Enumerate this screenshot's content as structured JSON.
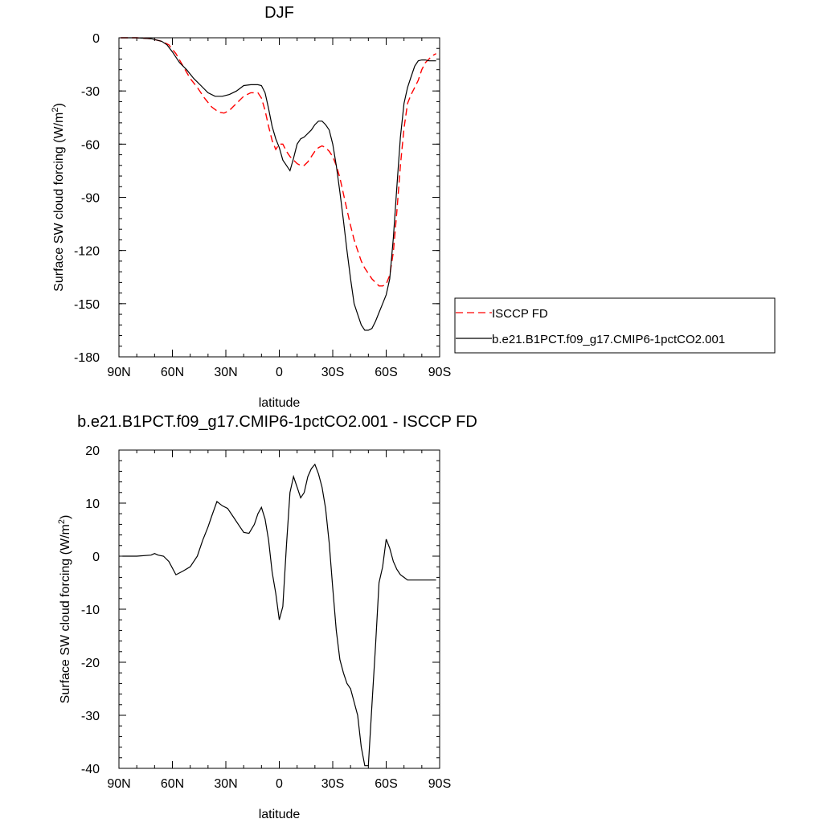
{
  "chart_data": [
    {
      "type": "line",
      "title": "DJF",
      "xlabel": "latitude",
      "ylabel": "Surface SW cloud forcing (W/m²)",
      "ylim": [
        -180,
        0
      ],
      "xlim": [
        -90,
        90
      ],
      "x_ticks": [
        -90,
        -60,
        -30,
        0,
        30,
        60,
        90
      ],
      "x_tick_labels": [
        "90N",
        "60N",
        "30N",
        "0",
        "30S",
        "60S",
        "90S"
      ],
      "y_ticks": [
        0,
        -30,
        -60,
        -90,
        -120,
        -150,
        -180
      ],
      "y_tick_labels": [
        "0",
        "-30",
        "-60",
        "-90",
        "-120",
        "-150",
        "-180"
      ],
      "legend_position": "right",
      "series": [
        {
          "name": "ISCCP FD",
          "color": "#ff0000",
          "dash": "dashed",
          "x": [
            -89,
            -80,
            -72,
            -66,
            -62,
            -58,
            -54,
            -50,
            -46,
            -42,
            -38,
            -34,
            -31,
            -28,
            -24,
            -20,
            -16,
            -12,
            -10,
            -8,
            -6,
            -4,
            -2,
            0,
            2,
            4,
            6,
            8,
            10,
            12,
            14,
            16,
            18,
            20,
            22,
            24,
            26,
            28,
            30,
            32,
            34,
            36,
            38,
            40,
            42,
            44,
            46,
            48,
            50,
            52,
            54,
            56,
            58,
            60,
            62,
            64,
            66,
            68,
            70,
            72,
            74,
            76,
            78,
            80,
            82,
            84,
            86,
            88
          ],
          "y": [
            0,
            0,
            -0.5,
            -2,
            -4,
            -9,
            -16,
            -23,
            -28,
            -34,
            -39,
            -42,
            -42.5,
            -41,
            -37,
            -33,
            -31,
            -31,
            -34,
            -41,
            -50,
            -58,
            -63,
            -60,
            -60,
            -64,
            -67,
            -69,
            -71,
            -72,
            -72,
            -70,
            -67,
            -64,
            -62,
            -61,
            -62,
            -64,
            -67,
            -72,
            -79,
            -88,
            -97,
            -106,
            -114,
            -120,
            -126,
            -130,
            -133,
            -136,
            -138,
            -140,
            -140,
            -139,
            -134,
            -121,
            -98,
            -72,
            -51,
            -37,
            -32,
            -28,
            -24,
            -18,
            -14,
            -12,
            -10,
            -9
          ]
        },
        {
          "name": "b.e21.B1PCT.f09_g17.CMIP6-1pctCO2.001",
          "color": "#000000",
          "dash": "solid",
          "x": [
            -89,
            -80,
            -72,
            -66,
            -63,
            -60,
            -56,
            -52,
            -48,
            -44,
            -40,
            -36,
            -32,
            -28,
            -24,
            -20,
            -16,
            -12,
            -10,
            -8,
            -6,
            -4,
            -2,
            0,
            2,
            4,
            6,
            8,
            10,
            12,
            14,
            16,
            18,
            20,
            22,
            24,
            26,
            28,
            30,
            32,
            34,
            36,
            38,
            40,
            42,
            44,
            46,
            48,
            50,
            52,
            54,
            56,
            58,
            60,
            62,
            64,
            66,
            68,
            70,
            72,
            74,
            76,
            78,
            80,
            82,
            84,
            86,
            88
          ],
          "y": [
            0,
            0,
            -0.5,
            -2,
            -4,
            -8,
            -14,
            -18,
            -23,
            -27,
            -31,
            -33,
            -33,
            -32,
            -30,
            -27,
            -26.5,
            -26.5,
            -27,
            -31,
            -40,
            -50,
            -57,
            -62,
            -69,
            -72,
            -75,
            -68,
            -60,
            -57,
            -56,
            -54,
            -52,
            -49,
            -47,
            -47,
            -49,
            -52,
            -60,
            -72,
            -87,
            -103,
            -120,
            -136,
            -150,
            -156,
            -162,
            -165,
            -165,
            -164,
            -160,
            -155,
            -150,
            -145,
            -136,
            -113,
            -84,
            -56,
            -37,
            -28,
            -22,
            -16,
            -13,
            -12.5,
            -12.5,
            -13,
            -13,
            -13
          ]
        }
      ]
    },
    {
      "type": "line",
      "title": "b.e21.B1PCT.f09_g17.CMIP6-1pctCO2.001 - ISCCP FD",
      "xlabel": "latitude",
      "ylabel": "Surface SW cloud forcing (W/m²)",
      "ylim": [
        -40,
        20
      ],
      "xlim": [
        -90,
        90
      ],
      "x_ticks": [
        -90,
        -60,
        -30,
        0,
        30,
        60,
        90
      ],
      "x_tick_labels": [
        "90N",
        "60N",
        "30N",
        "0",
        "30S",
        "60S",
        "90S"
      ],
      "y_ticks": [
        20,
        10,
        0,
        -10,
        -20,
        -30,
        -40
      ],
      "y_tick_labels": [
        "20",
        "10",
        "0",
        "-10",
        "-20",
        "-30",
        "-40"
      ],
      "series": [
        {
          "color": "#000000",
          "dash": "solid",
          "x": [
            -88,
            -80,
            -72,
            -70,
            -68,
            -65,
            -62,
            -58,
            -54,
            -50,
            -46,
            -43,
            -40,
            -38,
            -35,
            -32,
            -29,
            -26,
            -23,
            -20,
            -17,
            -14,
            -12,
            -10,
            -8,
            -6,
            -4,
            -2,
            0,
            2,
            4,
            6,
            8,
            10,
            12,
            14,
            16,
            18,
            20,
            22,
            24,
            26,
            28,
            30,
            32,
            34,
            36,
            38,
            40,
            42,
            44,
            46,
            48,
            50,
            52,
            54,
            56,
            58,
            60,
            62,
            64,
            66,
            68,
            70,
            72,
            74,
            76,
            78,
            80,
            82,
            84,
            86,
            88
          ],
          "y": [
            0,
            0,
            0.2,
            0.5,
            0.2,
            0,
            -1,
            -3.5,
            -2.8,
            -2,
            0,
            3,
            5.5,
            7.5,
            10.3,
            9.5,
            9,
            7.5,
            6,
            4.5,
            4.3,
            6,
            8,
            9.2,
            7,
            3,
            -3,
            -7,
            -12,
            -9.5,
            2,
            12,
            15,
            13,
            11,
            12,
            15,
            16.5,
            17.3,
            15.5,
            13,
            9,
            2.5,
            -6,
            -14,
            -19.5,
            -22,
            -24,
            -25,
            -27.5,
            -30,
            -36,
            -39.5,
            -39.5,
            -28,
            -17,
            -5,
            -2,
            3.2,
            1.5,
            -1,
            -2.5,
            -3.5,
            -4,
            -4.5,
            -4.5,
            -4.5,
            -4.5,
            -4.5,
            -4.5,
            -4.5,
            -4.5,
            -4.5
          ]
        }
      ]
    }
  ]
}
